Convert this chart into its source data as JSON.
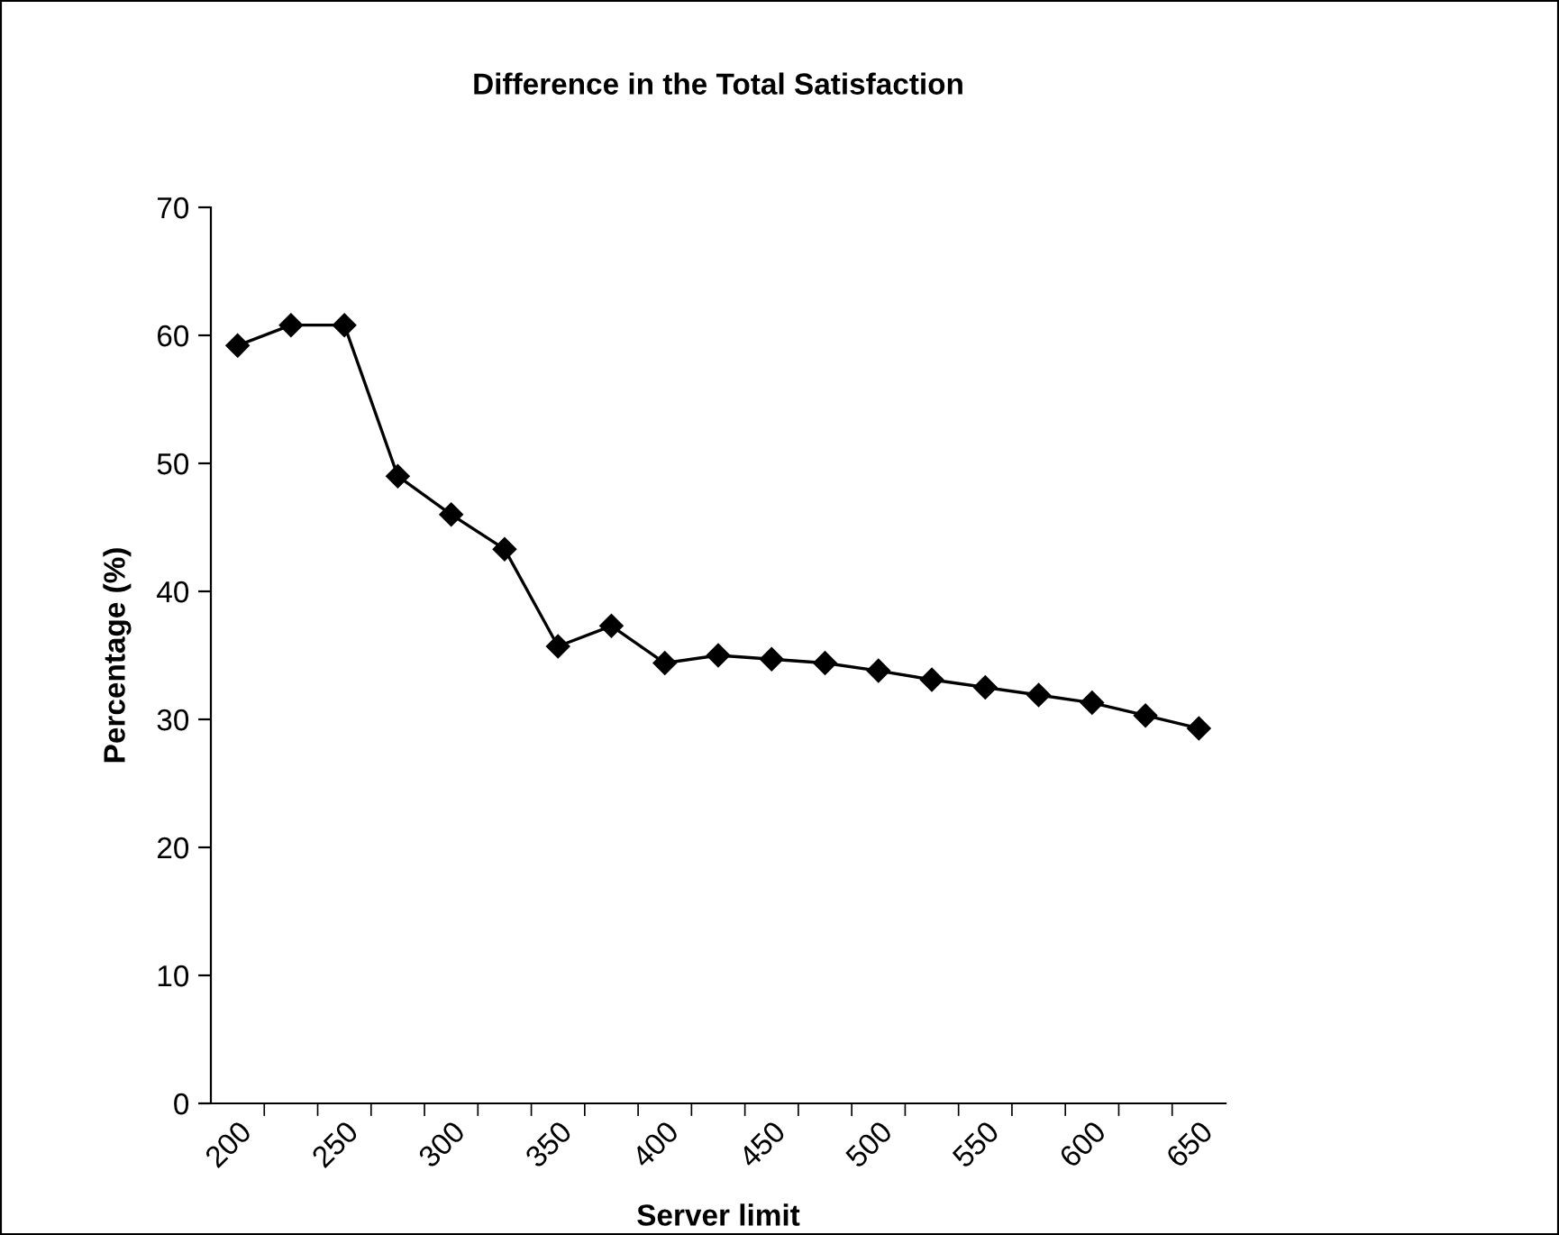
{
  "chart_data": {
    "type": "line",
    "title": "Difference in the Total Satisfaction",
    "xlabel": "Server limit",
    "ylabel": "Percentage (%)",
    "categories": [
      "200",
      null,
      "250",
      null,
      "300",
      null,
      "350",
      null,
      "400",
      null,
      "450",
      null,
      "500",
      null,
      "550",
      null,
      "600",
      null,
      "650"
    ],
    "series": [
      {
        "color": "#000000",
        "values": [
          59.2,
          60.8,
          60.8,
          49.0,
          46.0,
          43.3,
          35.7,
          37.3,
          34.4,
          35.0,
          34.7,
          34.4,
          33.8,
          33.1,
          32.5,
          31.9,
          31.3,
          30.3,
          29.3
        ]
      }
    ],
    "ylim": [
      0,
      70
    ],
    "yticks": [
      0,
      10,
      20,
      30,
      40,
      50,
      60,
      70
    ],
    "grid": false,
    "legend": false,
    "marker": "diamond",
    "line_style": "solid"
  }
}
